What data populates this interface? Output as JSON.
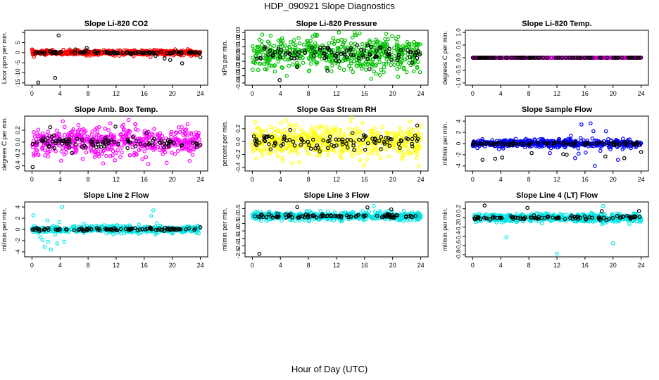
{
  "page": {
    "title": "HDP_090921  Slope Diagnostics",
    "xcaption": "Hour of Day (UTC)"
  },
  "chart_data": [
    {
      "type": "scatter",
      "title": "Slope Li-820 CO2",
      "ylabel": "Licor ppm per min.",
      "color": "#ff0000",
      "xlim": [
        0,
        24
      ],
      "ylim": [
        -15,
        10
      ],
      "yticks": [
        -15,
        -10,
        -5,
        0,
        5,
        10
      ],
      "ytick_labels": [
        "-15",
        "-10",
        "-5",
        "0",
        "5",
        ""
      ],
      "xticks": [
        0,
        4,
        8,
        12,
        16,
        20,
        24
      ],
      "noise_std": 0.6,
      "noise_max": 3,
      "black_outliers": [
        [
          0.9,
          -14.8
        ],
        [
          3.3,
          -12.5
        ],
        [
          3.8,
          8.5
        ],
        [
          6.2,
          1.6
        ],
        [
          7.8,
          2.3
        ],
        [
          17.6,
          -1.6
        ],
        [
          18.9,
          -2.9
        ],
        [
          19.7,
          -3.6
        ],
        [
          21.4,
          -5.3
        ],
        [
          24.0,
          -2.2
        ]
      ],
      "color_outliers": [
        [
          16.9,
          -2.2
        ],
        [
          17.2,
          0.8
        ]
      ]
    },
    {
      "type": "scatter",
      "title": "Slope Li-820 Pressure",
      "ylabel": "kPa per min.",
      "color": "#00c000",
      "xlim": [
        0,
        24
      ],
      "ylim": [
        -0.04,
        0.03
      ],
      "yticks": [
        -0.04,
        -0.03,
        -0.02,
        -0.01,
        0.0,
        0.01,
        0.02,
        0.03
      ],
      "ytick_labels": [
        "-0.04",
        "-0.03",
        "-0.02",
        "-0.01",
        "0.00",
        "0.01",
        "0.02",
        "0.03"
      ],
      "xticks": [
        0,
        4,
        8,
        12,
        16,
        20,
        24
      ],
      "noise_std": 0.012,
      "noise_max": 0.035,
      "black_outliers": [
        [
          3.9,
          -0.036
        ],
        [
          6.4,
          -0.018
        ],
        [
          10.7,
          -0.023
        ],
        [
          16.7,
          -0.021
        ]
      ],
      "color_outliers": [
        [
          1.4,
          0.027
        ],
        [
          4.9,
          -0.03
        ],
        [
          20.8,
          0.024
        ]
      ]
    },
    {
      "type": "scatter",
      "title": "Slope Li-820 Temp.",
      "ylabel": "degrees C per min.",
      "color": "#c000c0",
      "xlim": [
        0,
        24
      ],
      "ylim": [
        -1,
        1
      ],
      "yticks": [
        -1,
        -0.5,
        0,
        0.5,
        1
      ],
      "ytick_labels": [
        "-1.0",
        "-0.5",
        "0.0",
        "0.5",
        "1.0"
      ],
      "xticks": [
        0,
        4,
        8,
        12,
        16,
        20,
        24
      ],
      "noise_std": 0.003,
      "noise_max": 0.008,
      "black_outliers": [],
      "color_outliers": [
        [
          0.1,
          0.0
        ]
      ]
    },
    {
      "type": "scatter",
      "title": "Slope Amb. Box Temp.",
      "ylabel": "degrees C per min.",
      "color": "#ff00ff",
      "xlim": [
        0,
        24
      ],
      "ylim": [
        -0.45,
        0.4
      ],
      "yticks": [
        -0.4,
        -0.2,
        0.0,
        0.2
      ],
      "ytick_labels": [
        "-0.4",
        "-0.2",
        "0.0",
        "0.2"
      ],
      "xticks": [
        0,
        4,
        8,
        12,
        16,
        20,
        24
      ],
      "noise_std": 0.12,
      "noise_max": 0.37,
      "black_outliers": [
        [
          0.1,
          -0.42
        ],
        [
          2.6,
          0.25
        ],
        [
          11.9,
          0.26
        ],
        [
          24.0,
          -0.05
        ]
      ],
      "color_outliers": [
        [
          4.4,
          0.35
        ],
        [
          19.2,
          -0.35
        ]
      ]
    },
    {
      "type": "scatter",
      "title": "Slope Gas Stream RH",
      "ylabel": "percent per min.",
      "color": "#ffff00",
      "xlim": [
        0,
        24
      ],
      "ylim": [
        -0.42,
        0.36
      ],
      "yticks": [
        -0.4,
        -0.2,
        0.0,
        0.2
      ],
      "ytick_labels": [
        "-0.4",
        "-0.2",
        "0.0",
        "0.2"
      ],
      "xticks": [
        0,
        4,
        8,
        12,
        16,
        20,
        24
      ],
      "noise_std": 0.12,
      "noise_max": 0.38,
      "black_outliers": [
        [
          2.6,
          -0.12
        ],
        [
          5.4,
          0.18
        ],
        [
          9.6,
          -0.15
        ],
        [
          23.5,
          0.25
        ]
      ],
      "color_outliers": [
        [
          23.7,
          -0.38
        ],
        [
          0.4,
          0.3
        ]
      ]
    },
    {
      "type": "scatter",
      "title": "Slope Sample Flow",
      "ylabel": "ml/min per min.",
      "color": "#0000ff",
      "xlim": [
        0,
        24
      ],
      "ylim": [
        -4.5,
        4.5
      ],
      "yticks": [
        -4,
        -2,
        0,
        2,
        4
      ],
      "ytick_labels": [
        "-4",
        "-2",
        "0",
        "2",
        "4"
      ],
      "xticks": [
        0,
        4,
        8,
        12,
        16,
        20,
        24
      ],
      "noise_std": 0.35,
      "noise_max": 1.0,
      "black_outliers": [
        [
          1.4,
          -2.9
        ],
        [
          3.2,
          -2.7
        ],
        [
          4.2,
          -2.5
        ],
        [
          8.4,
          -1.7
        ],
        [
          12.9,
          -1.9
        ],
        [
          13.4,
          -2.0
        ],
        [
          18.9,
          -2.3
        ],
        [
          21.6,
          -2.6
        ],
        [
          24.0,
          -1.5
        ]
      ],
      "color_outliers": [
        [
          15.5,
          3.4
        ],
        [
          16.8,
          3.6
        ],
        [
          17.4,
          -4.0
        ],
        [
          17.2,
          2.2
        ],
        [
          14.6,
          -2.6
        ],
        [
          19.0,
          2.2
        ],
        [
          20.7,
          -2.9
        ],
        [
          15.1,
          -1.8
        ],
        [
          16.1,
          -1.6
        ],
        [
          18.2,
          -1.3
        ],
        [
          11.0,
          -1.7
        ],
        [
          14.0,
          1.4
        ]
      ]
    },
    {
      "type": "scatter",
      "title": "Slope Line 2 Flow",
      "ylabel": "ml/min per min.",
      "color": "#00e5e5",
      "xlim": [
        0,
        24
      ],
      "ylim": [
        -4.5,
        4.5
      ],
      "yticks": [
        -4,
        -2,
        0,
        2,
        4
      ],
      "ytick_labels": [
        "-4",
        "-2",
        "0",
        "2",
        "4"
      ],
      "xticks": [
        0,
        4,
        8,
        12,
        16,
        20,
        24
      ],
      "noise_std": 0.3,
      "noise_max": 1.0,
      "black_outliers": [
        [
          16.4,
          0.1
        ],
        [
          24.0,
          0.4
        ]
      ],
      "color_outliers": [
        [
          0.2,
          2.5
        ],
        [
          1.2,
          -1.4
        ],
        [
          1.5,
          -1.9
        ],
        [
          2.3,
          -2.2
        ],
        [
          2.7,
          -3.6
        ],
        [
          3.3,
          -0.9
        ],
        [
          3.6,
          -2.5
        ],
        [
          3.9,
          1.3
        ],
        [
          4.3,
          4.0
        ],
        [
          4.6,
          -2.2
        ],
        [
          2.2,
          1.6
        ],
        [
          17.0,
          2.4
        ],
        [
          17.3,
          3.4
        ],
        [
          17.6,
          -0.9
        ],
        [
          17.8,
          1.1
        ],
        [
          1.8,
          -3.1
        ]
      ]
    },
    {
      "type": "scatter",
      "title": "Slope Line 3 Flow",
      "ylabel": "ml/min per min.",
      "color": "#00e5e5",
      "xlim": [
        0,
        24
      ],
      "ylim": [
        -2.6,
        0.8
      ],
      "yticks": [
        -2.5,
        -2.0,
        -1.5,
        -1.0,
        -0.5,
        0.0,
        0.5
      ],
      "ytick_labels": [
        "-2.5",
        "-2.0",
        "-1.5",
        "-1.0",
        "-0.5",
        "0.0",
        "0.5"
      ],
      "xticks": [
        0,
        4,
        8,
        12,
        16,
        20,
        24
      ],
      "noise_std": 0.13,
      "noise_max": 0.4,
      "black_outliers": [
        [
          1.0,
          -2.55
        ],
        [
          6.4,
          0.6
        ],
        [
          16.4,
          0.58
        ],
        [
          19.8,
          0.45
        ]
      ],
      "color_outliers": [
        [
          9.7,
          -0.2
        ],
        [
          17.3,
          0.68
        ]
      ]
    },
    {
      "type": "scatter",
      "title": "Slope Line 4 (LT) Flow",
      "ylabel": "ml/min per min.",
      "color": "#00e5e5",
      "xlim": [
        0,
        24
      ],
      "ylim": [
        -0.8,
        0.3
      ],
      "yticks": [
        -0.8,
        -0.6,
        -0.4,
        -0.2,
        0.0,
        0.2
      ],
      "ytick_labels": [
        "-0.8",
        "-0.6",
        "-0.4",
        "-0.2",
        "0.0",
        "0.2"
      ],
      "xticks": [
        0,
        4,
        8,
        12,
        16,
        20,
        24
      ],
      "noise_std": 0.045,
      "noise_max": 0.15,
      "black_outliers": [
        [
          1.7,
          0.27
        ],
        [
          7.8,
          0.22
        ],
        [
          18.4,
          0.15
        ],
        [
          23.7,
          0.15
        ]
      ],
      "color_outliers": [
        [
          4.8,
          -0.42
        ],
        [
          12.0,
          -0.78
        ],
        [
          20.0,
          -0.55
        ],
        [
          18.6,
          0.26
        ]
      ]
    }
  ]
}
